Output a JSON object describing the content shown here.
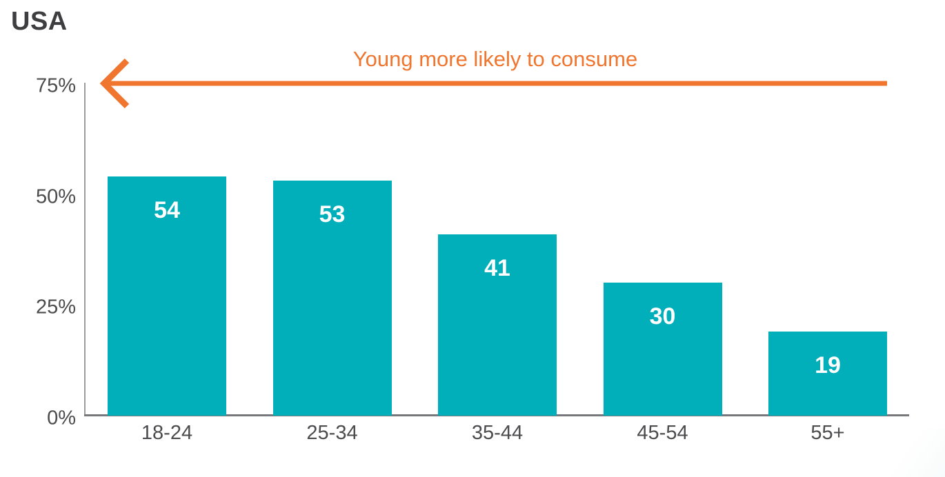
{
  "chart_data": {
    "type": "bar",
    "title": "USA",
    "categories": [
      "18-24",
      "25-34",
      "35-44",
      "45-54",
      "55+"
    ],
    "values": [
      54,
      53,
      41,
      30,
      19
    ],
    "xlabel": "",
    "ylabel": "",
    "ylim": [
      0,
      75
    ],
    "ytick_labels": [
      "0%",
      "25%",
      "50%",
      "75%"
    ],
    "ytick_values": [
      0,
      25,
      50,
      75
    ],
    "grid": false,
    "legend": "none",
    "bar_color": "#00afba",
    "value_label_color": "#ffffff",
    "axis_text_color": "#4c4c4e",
    "annotation": {
      "text": "Young more likely to consume",
      "color": "#f0762f",
      "arrow_direction": "left"
    }
  }
}
